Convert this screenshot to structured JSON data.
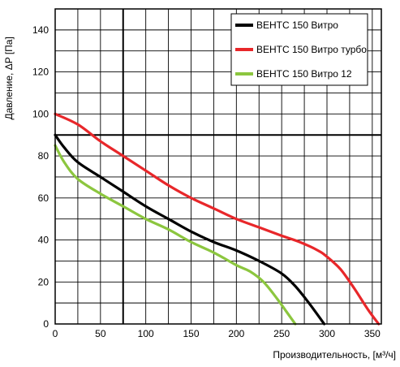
{
  "chart_data": {
    "type": "line",
    "xlabel": "Производительность, [м³/ч]",
    "ylabel": "Давление, ΔP [Па]",
    "xlim": [
      0,
      360
    ],
    "ylim": [
      0,
      150
    ],
    "xticks": [
      0,
      50,
      100,
      150,
      200,
      250,
      300,
      350
    ],
    "yticks": [
      0,
      20,
      40,
      60,
      80,
      100,
      120,
      140
    ],
    "grid": true,
    "legend_position": "top-right",
    "series": [
      {
        "name": "ВЕНТС 150 Витро",
        "color": "#000000",
        "x": [
          0,
          10,
          25,
          50,
          75,
          100,
          125,
          150,
          175,
          200,
          225,
          250,
          265,
          280,
          297
        ],
        "y": [
          90,
          84,
          77,
          70,
          63,
          56,
          50,
          44,
          39,
          35,
          30,
          24,
          18,
          10,
          0
        ]
      },
      {
        "name": "ВЕНТС 150 Витро турбо",
        "color": "#e8272a",
        "x": [
          0,
          25,
          50,
          75,
          100,
          125,
          150,
          175,
          200,
          225,
          250,
          270,
          290,
          300,
          315,
          330,
          345,
          357
        ],
        "y": [
          100,
          95,
          87,
          80,
          73,
          66,
          60,
          55,
          50,
          46,
          42,
          39,
          35,
          32,
          26,
          17,
          7,
          0
        ]
      },
      {
        "name": "ВЕНТС 150 Витро 12",
        "color": "#8cc63f",
        "x": [
          0,
          10,
          25,
          50,
          75,
          100,
          125,
          150,
          175,
          200,
          215,
          230,
          245,
          255,
          265
        ],
        "y": [
          85,
          77,
          69,
          62,
          56,
          50,
          45,
          39,
          34,
          28,
          25,
          20,
          12,
          6,
          0
        ]
      }
    ]
  }
}
